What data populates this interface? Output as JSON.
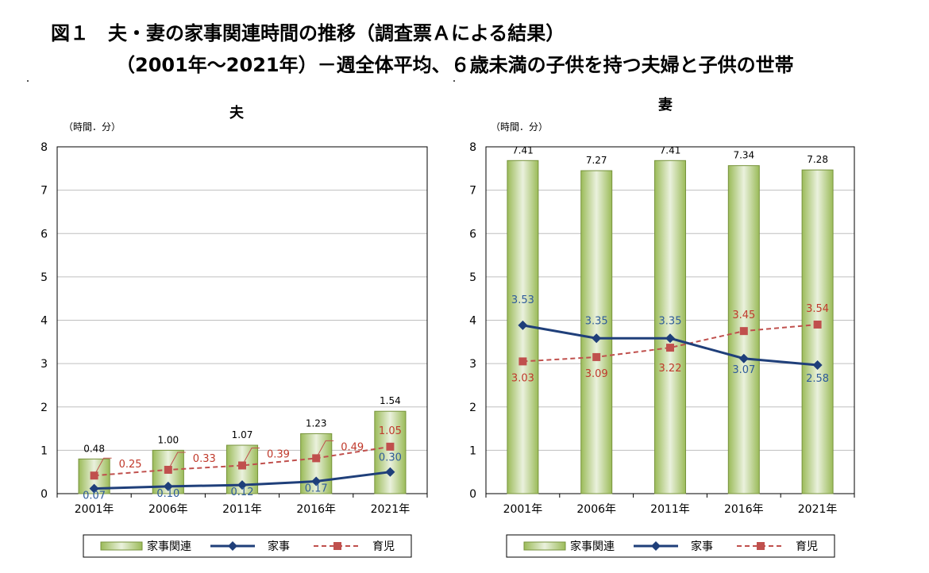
{
  "title": {
    "line1": "図１　夫・妻の家事関連時間の推移（調査票Ａによる結果）",
    "line2": "（2001年～2021年）－週全体平均、６歳未満の子供を持つ夫婦と子供の世帯"
  },
  "colors": {
    "bar_fill": "#9bbb59",
    "bar_light": "#eaf1dd",
    "bar_edge": "#77933c",
    "line_kaji": "#1f3f7a",
    "line_ikuji": "#c0504d",
    "label_kaji": "#2e5b9a",
    "label_ikuji": "#c0392b",
    "grid": "#bfbfbf"
  },
  "chart_data": [
    {
      "type": "bar",
      "title": "夫",
      "ylabel": "（時間．分）",
      "ylim": [
        0,
        8
      ],
      "yticks": [
        "0",
        "1",
        "2",
        "3",
        "4",
        "5",
        "6",
        "7",
        "8"
      ],
      "categories": [
        "2001年",
        "2006年",
        "2011年",
        "2016年",
        "2021年"
      ],
      "series": [
        {
          "name": "家事関連",
          "kind": "bar",
          "values": [
            0.8,
            1.0,
            1.1167,
            1.3833,
            1.9
          ],
          "labels": [
            "0.48",
            "1.00",
            "1.07",
            "1.23",
            "1.54"
          ]
        },
        {
          "name": "家事",
          "kind": "line",
          "values": [
            0.1167,
            0.1667,
            0.2,
            0.2833,
            0.5
          ],
          "labels": [
            "0.07",
            "0.10",
            "0.12",
            "0.17",
            "0.30"
          ]
        },
        {
          "name": "育児",
          "kind": "dashed-line",
          "values": [
            0.4167,
            0.55,
            0.65,
            0.8167,
            1.0833
          ],
          "labels": [
            "0.25",
            "0.33",
            "0.39",
            "0.49",
            "1.05"
          ]
        }
      ]
    },
    {
      "type": "bar",
      "title": "妻",
      "ylabel": "（時間．分）",
      "ylim": [
        0,
        8
      ],
      "yticks": [
        "0",
        "1",
        "2",
        "3",
        "4",
        "5",
        "6",
        "7",
        "8"
      ],
      "categories": [
        "2001年",
        "2006年",
        "2011年",
        "2016年",
        "2021年"
      ],
      "series": [
        {
          "name": "家事関連",
          "kind": "bar",
          "values": [
            7.6833,
            7.45,
            7.6833,
            7.5667,
            7.4667
          ],
          "labels": [
            "7.41",
            "7.27",
            "7.41",
            "7.34",
            "7.28"
          ]
        },
        {
          "name": "家事",
          "kind": "line",
          "values": [
            3.8833,
            3.5833,
            3.5833,
            3.1167,
            2.9667
          ],
          "labels": [
            "3.53",
            "3.35",
            "3.35",
            "3.07",
            "2.58"
          ]
        },
        {
          "name": "育児",
          "kind": "dashed-line",
          "values": [
            3.05,
            3.15,
            3.3667,
            3.75,
            3.9
          ],
          "labels": [
            "3.03",
            "3.09",
            "3.22",
            "3.45",
            "3.54"
          ]
        }
      ]
    }
  ]
}
